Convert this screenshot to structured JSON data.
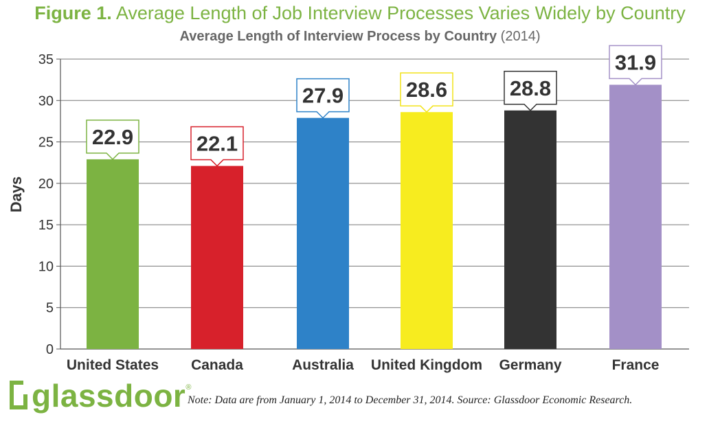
{
  "figure_title": {
    "label": "Figure 1.",
    "text": "Average Length of Job Interview Processes Varies Widely by Country"
  },
  "chart_title": {
    "main": "Average Length of Interview Process by Country",
    "year": "(2014)"
  },
  "logo": {
    "text": "glassdoor",
    "reg": "®"
  },
  "note": "Note: Data are from January 1, 2014 to December 31, 2014. Source: Glassdoor Economic Research.",
  "chart_data": {
    "type": "bar",
    "title": "Average Length of Interview Process by Country (2014)",
    "ylabel": "Days",
    "xlabel": "",
    "ylim": [
      0,
      35
    ],
    "yticks": [
      0,
      5,
      10,
      15,
      20,
      25,
      30,
      35
    ],
    "grid": true,
    "categories": [
      "United States",
      "Canada",
      "Australia",
      "United Kingdom",
      "Germany",
      "France"
    ],
    "values": [
      22.9,
      22.1,
      27.9,
      28.6,
      28.8,
      31.9
    ],
    "value_labels": [
      "22.9",
      "22.1",
      "27.9",
      "28.6",
      "28.8",
      "31.9"
    ],
    "colors": [
      "#7cb342",
      "#d7212b",
      "#2e82c8",
      "#f7ec1f",
      "#333333",
      "#a390c7"
    ]
  }
}
